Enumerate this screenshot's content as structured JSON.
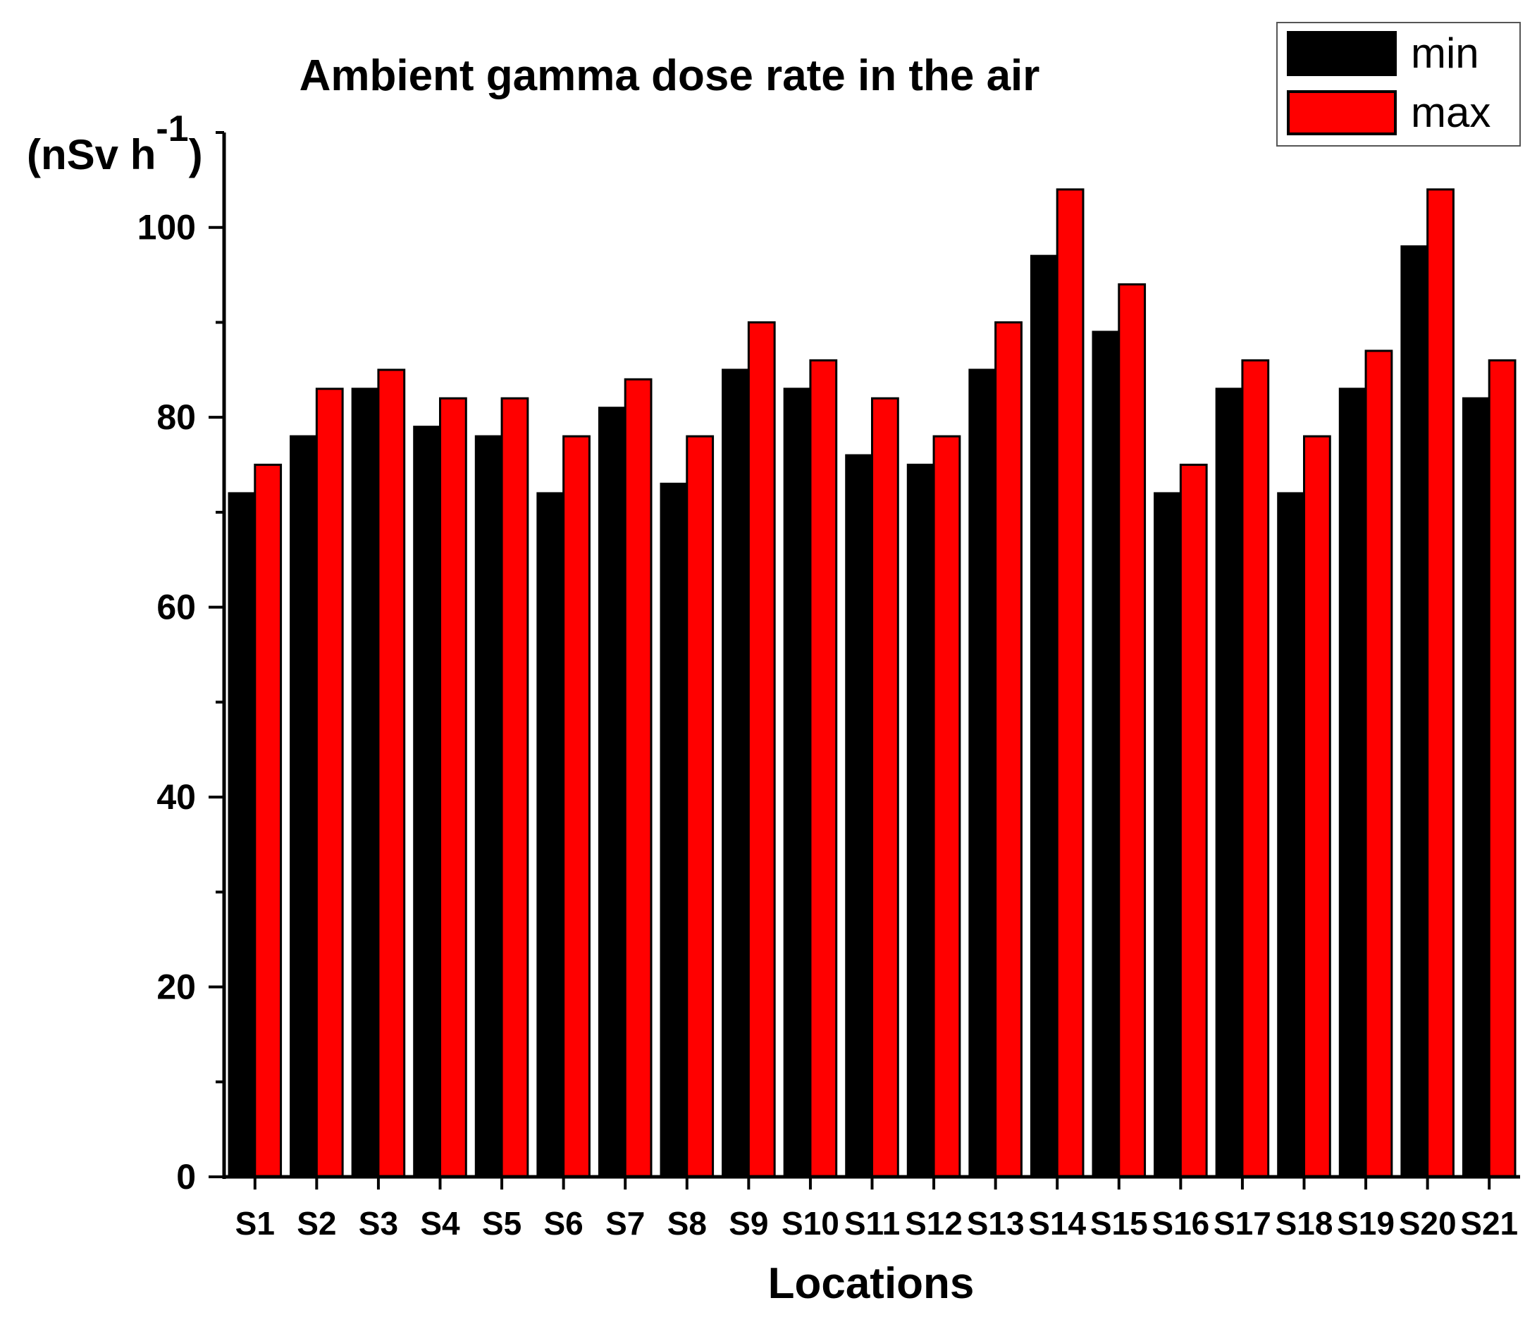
{
  "chart_data": {
    "type": "bar",
    "title": "Ambient gamma dose rate in the air",
    "ylabel": "(nSv h",
    "ylabel_superscript": "-1",
    "ylabel_close": ")",
    "xlabel": "Locations",
    "ylim": [
      0,
      110
    ],
    "y_ticks": [
      0,
      20,
      40,
      60,
      80,
      100
    ],
    "y_minor_step": 10,
    "legend_position": "top-right",
    "categories": [
      "S1",
      "S2",
      "S3",
      "S4",
      "S5",
      "S6",
      "S7",
      "S8",
      "S9",
      "S10",
      "S11",
      "S12",
      "S13",
      "S14",
      "S15",
      "S16",
      "S17",
      "S18",
      "S19",
      "S20",
      "S21"
    ],
    "series": [
      {
        "name": "min",
        "color": "#000000",
        "values": [
          72,
          78,
          83,
          79,
          78,
          72,
          81,
          73,
          85,
          83,
          76,
          75,
          85,
          97,
          89,
          72,
          83,
          72,
          83,
          98,
          82
        ]
      },
      {
        "name": "max",
        "color": "#ff0000",
        "values": [
          75,
          83,
          85,
          82,
          82,
          78,
          84,
          78,
          90,
          86,
          82,
          78,
          90,
          104,
          94,
          75,
          86,
          78,
          87,
          104,
          86
        ]
      }
    ]
  }
}
